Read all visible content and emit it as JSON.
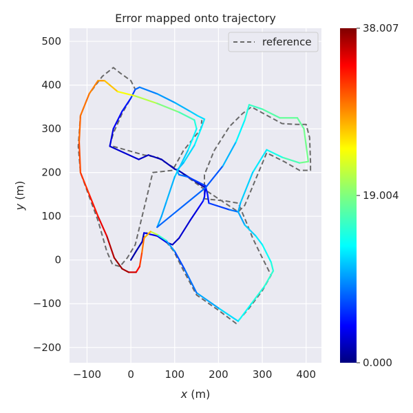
{
  "chart_data": {
    "type": "line",
    "title": "Error mapped onto trajectory",
    "xlabel": "x (m)",
    "ylabel": "y (m)",
    "xlim": [
      -140,
      435
    ],
    "ylim": [
      -235,
      530
    ],
    "xticks": [
      -100,
      0,
      100,
      200,
      300,
      400
    ],
    "yticks": [
      -200,
      -100,
      0,
      100,
      200,
      300,
      400,
      500
    ],
    "grid": true,
    "legend": {
      "position": "top-right",
      "entries": [
        "reference"
      ]
    },
    "colorbar": {
      "colormap": "jet",
      "min": 0.0,
      "max": 38.007,
      "ticks": [
        "0.000",
        "19.004",
        "38.007"
      ]
    },
    "series": [
      {
        "name": "reference",
        "style": "dashed",
        "color": "#696969",
        "points": [
          [
            0,
            0
          ],
          [
            12,
            20
          ],
          [
            26,
            42
          ],
          [
            35,
            62
          ],
          [
            60,
            55
          ],
          [
            82,
            40
          ],
          [
            98,
            20
          ],
          [
            118,
            -20
          ],
          [
            150,
            -80
          ],
          [
            200,
            -115
          ],
          [
            240,
            -145
          ],
          [
            270,
            -110
          ],
          [
            300,
            -70
          ],
          [
            320,
            -35
          ],
          [
            295,
            15
          ],
          [
            278,
            50
          ],
          [
            262,
            90
          ],
          [
            245,
            130
          ],
          [
            215,
            135
          ],
          [
            168,
            140
          ],
          [
            168,
            195
          ],
          [
            190,
            250
          ],
          [
            225,
            305
          ],
          [
            255,
            335
          ],
          [
            275,
            350
          ],
          [
            345,
            312
          ],
          [
            380,
            310
          ],
          [
            400,
            310
          ],
          [
            408,
            280
          ],
          [
            410,
            225
          ],
          [
            410,
            205
          ],
          [
            385,
            205
          ],
          [
            350,
            225
          ],
          [
            310,
            245
          ],
          [
            260,
            125
          ],
          [
            245,
            110
          ],
          [
            170,
            160
          ],
          [
            108,
            205
          ],
          [
            60,
            235
          ],
          [
            30,
            240
          ],
          [
            -48,
            262
          ],
          [
            -40,
            290
          ],
          [
            -20,
            335
          ],
          [
            0,
            370
          ],
          [
            10,
            390
          ],
          [
            0,
            410
          ],
          [
            -25,
            428
          ],
          [
            -40,
            440
          ],
          [
            -65,
            420
          ],
          [
            -95,
            380
          ],
          [
            -115,
            330
          ],
          [
            -120,
            260
          ],
          [
            -115,
            200
          ],
          [
            -95,
            145
          ],
          [
            -75,
            90
          ],
          [
            -55,
            20
          ],
          [
            -42,
            -10
          ],
          [
            -25,
            -15
          ],
          [
            -8,
            5
          ],
          [
            10,
            35
          ],
          [
            50,
            200
          ],
          [
            95,
            205
          ],
          [
            120,
            250
          ],
          [
            160,
            300
          ],
          [
            162,
            320
          ]
        ]
      },
      {
        "name": "",
        "style": "colormapped",
        "color_field": "error",
        "points": [
          [
            0,
            0,
            1
          ],
          [
            12,
            20,
            2
          ],
          [
            26,
            42,
            2
          ],
          [
            30,
            62,
            3
          ],
          [
            60,
            55,
            5
          ],
          [
            82,
            40,
            3
          ],
          [
            95,
            35,
            2
          ],
          [
            110,
            50,
            3
          ],
          [
            135,
            90,
            3
          ],
          [
            155,
            120,
            4
          ],
          [
            165,
            135,
            5
          ],
          [
            168,
            145,
            7
          ],
          [
            170,
            165,
            2
          ],
          [
            108,
            205,
            2
          ],
          [
            100,
            208,
            2
          ],
          [
            70,
            230,
            2
          ],
          [
            40,
            240,
            2
          ],
          [
            18,
            230,
            3
          ],
          [
            -48,
            260,
            3
          ],
          [
            -40,
            300,
            4
          ],
          [
            -20,
            340,
            5
          ],
          [
            0,
            370,
            6
          ],
          [
            10,
            390,
            8
          ],
          [
            20,
            395,
            9
          ],
          [
            60,
            380,
            10
          ],
          [
            100,
            360,
            11
          ],
          [
            135,
            340,
            12
          ],
          [
            152,
            330,
            13
          ],
          [
            168,
            322,
            13
          ],
          [
            160,
            300,
            14
          ],
          [
            145,
            262,
            14
          ],
          [
            120,
            222,
            12
          ],
          [
            105,
            205,
            11
          ],
          [
            110,
            195,
            10
          ],
          [
            130,
            190,
            8
          ],
          [
            170,
            170,
            6
          ],
          [
            175,
            150,
            5
          ],
          [
            178,
            130,
            6
          ],
          [
            225,
            115,
            8
          ],
          [
            245,
            110,
            10
          ],
          [
            260,
            80,
            12
          ],
          [
            285,
            55,
            13
          ],
          [
            300,
            35,
            14
          ],
          [
            320,
            -5,
            15
          ],
          [
            325,
            -25,
            16
          ],
          [
            305,
            -60,
            16
          ],
          [
            275,
            -100,
            15
          ],
          [
            245,
            -140,
            14
          ],
          [
            200,
            -110,
            12
          ],
          [
            150,
            -75,
            10
          ],
          [
            122,
            -20,
            8
          ],
          [
            100,
            20,
            7
          ],
          [
            80,
            45,
            14
          ],
          [
            60,
            58,
            18
          ],
          [
            45,
            65,
            25
          ],
          [
            30,
            50,
            28
          ],
          [
            25,
            15,
            30
          ],
          [
            20,
            -15,
            32
          ],
          [
            12,
            -28,
            34
          ],
          [
            -5,
            -28,
            36
          ],
          [
            -20,
            -20,
            37
          ],
          [
            -38,
            5,
            37
          ],
          [
            -55,
            55,
            35
          ],
          [
            -75,
            100,
            33
          ],
          [
            -95,
            150,
            32
          ],
          [
            -115,
            200,
            31
          ],
          [
            -118,
            270,
            30
          ],
          [
            -115,
            330,
            29
          ],
          [
            -95,
            380,
            29
          ],
          [
            -75,
            410,
            28
          ],
          [
            -60,
            410,
            27
          ],
          [
            -30,
            385,
            25
          ],
          [
            10,
            375,
            22
          ],
          [
            60,
            358,
            20
          ],
          [
            110,
            338,
            18
          ],
          [
            145,
            320,
            16
          ],
          [
            150,
            300,
            15
          ],
          [
            130,
            250,
            13
          ],
          [
            100,
            190,
            12
          ],
          [
            80,
            130,
            11
          ],
          [
            70,
            100,
            11
          ],
          [
            60,
            75,
            11
          ],
          [
            170,
            165,
            6
          ],
          [
            210,
            215,
            10
          ],
          [
            240,
            270,
            13
          ],
          [
            260,
            320,
            15
          ],
          [
            270,
            355,
            16
          ],
          [
            300,
            345,
            17
          ],
          [
            340,
            325,
            18
          ],
          [
            380,
            325,
            18
          ],
          [
            395,
            300,
            18
          ],
          [
            405,
            225,
            19
          ],
          [
            385,
            222,
            18
          ],
          [
            345,
            235,
            16
          ],
          [
            310,
            252,
            14
          ],
          [
            278,
            200,
            13
          ],
          [
            250,
            130,
            12
          ],
          [
            245,
            110,
            11
          ]
        ]
      }
    ]
  }
}
